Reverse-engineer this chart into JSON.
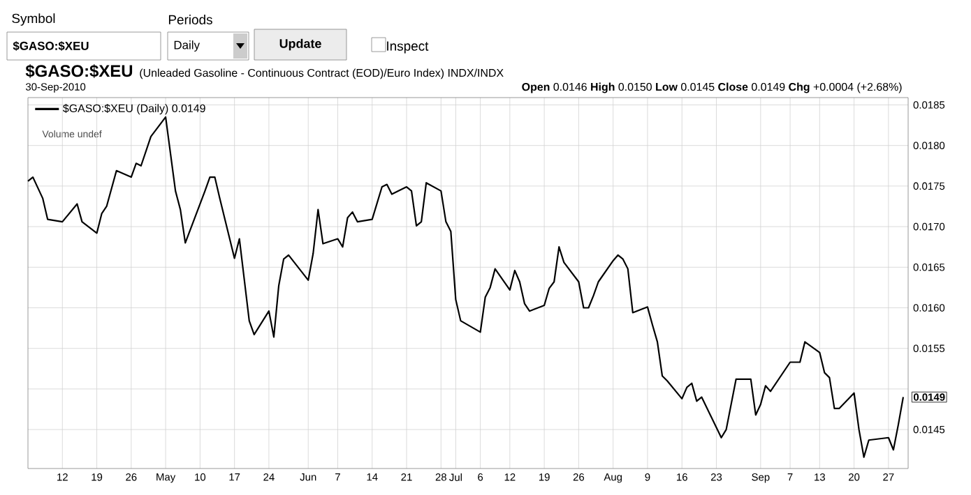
{
  "chart_data": {
    "type": "line",
    "title": "$GASO:$XEU",
    "subtitle": "(Unleaded Gasoline - Continuous Contract (EOD)/Euro Index)  INDX/INDX",
    "annotations": [
      "Symbol",
      "Periods",
      "$GASO:$XEU",
      "Daily",
      "Update",
      "Inspect",
      "30-Sep-2010",
      "**Open** 0.0146  **High** 0.0150  **Low** 0.0145  **Close** 0.0149  **Chg** +0.0004 (+2.68%)",
      "Volume undef",
      {
        "text": "0.0149",
        "x": "2010-09-30",
        "y": 0.0149
      }
    ],
    "x": [
      "2010-04-05",
      "2010-04-06",
      "2010-04-08",
      "2010-04-09",
      "2010-04-12",
      "2010-04-15",
      "2010-04-16",
      "2010-04-19",
      "2010-04-20",
      "2010-04-21",
      "2010-04-23",
      "2010-04-26",
      "2010-04-27",
      "2010-04-28",
      "2010-04-30",
      "2010-05-03",
      "2010-05-05",
      "2010-05-06",
      "2010-05-07",
      "2010-05-11",
      "2010-05-12",
      "2010-05-13",
      "2010-05-14",
      "2010-05-17",
      "2010-05-18",
      "2010-05-20",
      "2010-05-21",
      "2010-05-24",
      "2010-05-25",
      "2010-05-26",
      "2010-05-27",
      "2010-05-28",
      "2010-06-01",
      "2010-06-02",
      "2010-06-03",
      "2010-06-04",
      "2010-06-07",
      "2010-06-08",
      "2010-06-09",
      "2010-06-10",
      "2010-06-11",
      "2010-06-14",
      "2010-06-16",
      "2010-06-17",
      "2010-06-18",
      "2010-06-21",
      "2010-06-22",
      "2010-06-23",
      "2010-06-24",
      "2010-06-25",
      "2010-06-28",
      "2010-06-29",
      "2010-06-30",
      "2010-07-01",
      "2010-07-02",
      "2010-07-06",
      "2010-07-07",
      "2010-07-08",
      "2010-07-09",
      "2010-07-12",
      "2010-07-13",
      "2010-07-14",
      "2010-07-15",
      "2010-07-16",
      "2010-07-19",
      "2010-07-20",
      "2010-07-21",
      "2010-07-22",
      "2010-07-23",
      "2010-07-26",
      "2010-07-27",
      "2010-07-28",
      "2010-07-29",
      "2010-07-30",
      "2010-08-02",
      "2010-08-03",
      "2010-08-04",
      "2010-08-05",
      "2010-08-06",
      "2010-08-09",
      "2010-08-10",
      "2010-08-11",
      "2010-08-12",
      "2010-08-13",
      "2010-08-16",
      "2010-08-17",
      "2010-08-18",
      "2010-08-19",
      "2010-08-20",
      "2010-08-24",
      "2010-08-25",
      "2010-08-27",
      "2010-08-30",
      "2010-08-31",
      "2010-09-01",
      "2010-09-02",
      "2010-09-03",
      "2010-09-07",
      "2010-09-08",
      "2010-09-09",
      "2010-09-10",
      "2010-09-13",
      "2010-09-14",
      "2010-09-15",
      "2010-09-16",
      "2010-09-17",
      "2010-09-20",
      "2010-09-21",
      "2010-09-22",
      "2010-09-23",
      "2010-09-27",
      "2010-09-28",
      "2010-09-29",
      "2010-09-30"
    ],
    "series": [
      {
        "name": "$GASO:$XEU (Daily) 0.0149",
        "color": "#000000",
        "values": [
          0.01756,
          0.01761,
          0.01735,
          0.01709,
          0.01706,
          0.01728,
          0.01706,
          0.01692,
          0.01716,
          0.01725,
          0.01769,
          0.01761,
          0.01778,
          0.01775,
          0.01811,
          0.01835,
          0.01744,
          0.01721,
          0.0168,
          0.01744,
          0.01761,
          0.01761,
          0.01735,
          0.01661,
          0.01685,
          0.01584,
          0.01567,
          0.01596,
          0.01564,
          0.01627,
          0.0166,
          0.01665,
          0.01634,
          0.01667,
          0.01721,
          0.01679,
          0.01685,
          0.01675,
          0.01711,
          0.01718,
          0.01706,
          0.01709,
          0.01749,
          0.01752,
          0.0174,
          0.01749,
          0.01744,
          0.01701,
          0.01706,
          0.01754,
          0.01744,
          0.01706,
          0.01694,
          0.0161,
          0.01584,
          0.0157,
          0.01613,
          0.01625,
          0.01648,
          0.01622,
          0.01646,
          0.01632,
          0.01605,
          0.01596,
          0.01603,
          0.01624,
          0.01632,
          0.01675,
          0.01656,
          0.01632,
          0.016,
          0.016,
          0.01615,
          0.01632,
          0.01658,
          0.01665,
          0.0166,
          0.01648,
          0.01594,
          0.01601,
          0.01579,
          0.01558,
          0.01516,
          0.0151,
          0.01488,
          0.01502,
          0.01507,
          0.01485,
          0.0149,
          0.0144,
          0.0145,
          0.01512,
          0.01512,
          0.01468,
          0.01481,
          0.01504,
          0.01497,
          0.01533,
          0.01533,
          0.01533,
          0.01558,
          0.01545,
          0.0152,
          0.01514,
          0.01476,
          0.01476,
          0.01495,
          0.0145,
          0.01416,
          0.01437,
          0.0144,
          0.01425,
          0.01456,
          0.0149
        ]
      }
    ],
    "xlim": [
      "2010-04-05",
      "2010-10-01"
    ],
    "xticks": [
      {
        "value": "2010-04-12",
        "label": "12"
      },
      {
        "value": "2010-04-19",
        "label": "19"
      },
      {
        "value": "2010-04-26",
        "label": "26"
      },
      {
        "value": "2010-05-03",
        "label": "May"
      },
      {
        "value": "2010-05-10",
        "label": "10"
      },
      {
        "value": "2010-05-17",
        "label": "17"
      },
      {
        "value": "2010-05-24",
        "label": "24"
      },
      {
        "value": "2010-06-01",
        "label": "Jun"
      },
      {
        "value": "2010-06-07",
        "label": "7"
      },
      {
        "value": "2010-06-14",
        "label": "14"
      },
      {
        "value": "2010-06-21",
        "label": "21"
      },
      {
        "value": "2010-06-28",
        "label": "28"
      },
      {
        "value": "2010-07-01",
        "label": "Jul"
      },
      {
        "value": "2010-07-06",
        "label": "6"
      },
      {
        "value": "2010-07-12",
        "label": "12"
      },
      {
        "value": "2010-07-19",
        "label": "19"
      },
      {
        "value": "2010-07-26",
        "label": "26"
      },
      {
        "value": "2010-08-02",
        "label": "Aug"
      },
      {
        "value": "2010-08-09",
        "label": "9"
      },
      {
        "value": "2010-08-16",
        "label": "16"
      },
      {
        "value": "2010-08-23",
        "label": "23"
      },
      {
        "value": "2010-09-01",
        "label": "Sep"
      },
      {
        "value": "2010-09-07",
        "label": "7"
      },
      {
        "value": "2010-09-13",
        "label": "13"
      },
      {
        "value": "2010-09-20",
        "label": "20"
      },
      {
        "value": "2010-09-27",
        "label": "27"
      }
    ],
    "ylim": [
      0.01402,
      0.01859
    ],
    "yticks": [
      0.0145,
      {
        "value": 0.015,
        "label": null
      },
      0.0155,
      {
        "value": 0.016,
        "label": "0.0160"
      },
      0.0165,
      {
        "value": 0.017,
        "label": "0.0170"
      },
      0.0175,
      {
        "value": 0.018,
        "label": "0.0180"
      },
      0.0185
    ],
    "grid": true,
    "legend": "top left"
  }
}
